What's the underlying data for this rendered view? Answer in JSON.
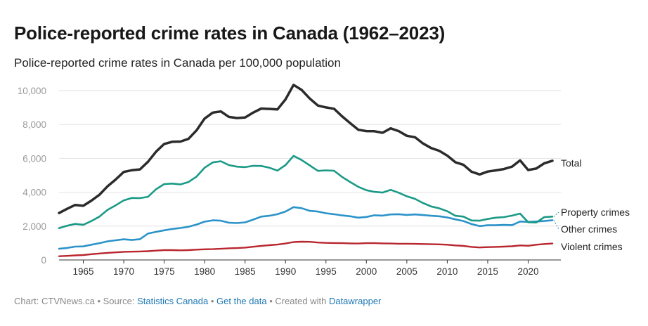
{
  "title": "Police-reported crime rates in Canada (1962–2023)",
  "subtitle": "Police-reported crime rates in Canada per 100,000 population",
  "footer": {
    "chart_prefix": "Chart: CTVNews.ca • Source: ",
    "source_link": "Statistics Canada",
    "sep": " • ",
    "data_link": "Get the data",
    "created_prefix": " • Created with ",
    "tool_link": "Datawrapper"
  },
  "chart_data": {
    "type": "line",
    "title": "Police-reported crime rates in Canada (1962–2023)",
    "ylabel": "per 100,000 population",
    "xlim": [
      1962,
      2023
    ],
    "ylim": [
      0,
      10000
    ],
    "yticks": [
      0,
      2000,
      4000,
      6000,
      8000,
      10000
    ],
    "ytick_labels": [
      "0",
      "2,000",
      "4,000",
      "6,000",
      "8,000",
      "10,000"
    ],
    "xticks": [
      1965,
      1970,
      1975,
      1980,
      1985,
      1990,
      1995,
      2000,
      2005,
      2010,
      2015,
      2020
    ],
    "x": [
      1962,
      1963,
      1964,
      1965,
      1966,
      1967,
      1968,
      1969,
      1970,
      1971,
      1972,
      1973,
      1974,
      1975,
      1976,
      1977,
      1978,
      1979,
      1980,
      1981,
      1982,
      1983,
      1984,
      1985,
      1986,
      1987,
      1988,
      1989,
      1990,
      1991,
      1992,
      1993,
      1994,
      1995,
      1996,
      1997,
      1998,
      1999,
      2000,
      2001,
      2002,
      2003,
      2004,
      2005,
      2006,
      2007,
      2008,
      2009,
      2010,
      2011,
      2012,
      2013,
      2014,
      2015,
      2016,
      2017,
      2018,
      2019,
      2020,
      2021,
      2022,
      2023
    ],
    "series": [
      {
        "name": "Total",
        "color": "#2b2b2b",
        "values": [
          2770,
          3020,
          3250,
          3200,
          3500,
          3850,
          4350,
          4750,
          5200,
          5300,
          5350,
          5800,
          6400,
          6850,
          6980,
          6990,
          7150,
          7650,
          8350,
          8700,
          8770,
          8450,
          8380,
          8410,
          8700,
          8940,
          8920,
          8890,
          9480,
          10340,
          10040,
          9530,
          9120,
          9010,
          8930,
          8480,
          8080,
          7690,
          7610,
          7600,
          7510,
          7770,
          7610,
          7330,
          7250,
          6880,
          6610,
          6450,
          6160,
          5770,
          5620,
          5210,
          5050,
          5220,
          5290,
          5370,
          5510,
          5880,
          5310,
          5400,
          5710,
          5860
        ]
      },
      {
        "name": "Property crimes",
        "color": "#1a9a86",
        "values": [
          1880,
          2020,
          2130,
          2080,
          2300,
          2560,
          2960,
          3230,
          3520,
          3660,
          3650,
          3730,
          4180,
          4480,
          4510,
          4460,
          4600,
          4920,
          5450,
          5760,
          5830,
          5600,
          5510,
          5480,
          5560,
          5550,
          5450,
          5280,
          5600,
          6150,
          5900,
          5580,
          5260,
          5290,
          5270,
          4900,
          4600,
          4320,
          4120,
          4020,
          3980,
          4140,
          3970,
          3760,
          3610,
          3360,
          3160,
          3050,
          2880,
          2610,
          2560,
          2330,
          2320,
          2420,
          2500,
          2530,
          2620,
          2740,
          2230,
          2210,
          2530,
          2560
        ]
      },
      {
        "name": "Other crimes",
        "color": "#2b93c9",
        "values": [
          660,
          710,
          790,
          800,
          900,
          990,
          1100,
          1160,
          1220,
          1180,
          1230,
          1560,
          1660,
          1750,
          1830,
          1890,
          1960,
          2090,
          2260,
          2340,
          2320,
          2200,
          2180,
          2220,
          2380,
          2560,
          2610,
          2700,
          2860,
          3120,
          3060,
          2900,
          2860,
          2760,
          2700,
          2630,
          2580,
          2500,
          2540,
          2640,
          2620,
          2690,
          2700,
          2660,
          2690,
          2650,
          2610,
          2580,
          2510,
          2400,
          2300,
          2120,
          2000,
          2050,
          2050,
          2070,
          2060,
          2270,
          2250,
          2270,
          2300,
          2350
        ]
      },
      {
        "name": "Violent crimes",
        "color": "#b8262e",
        "values": [
          220,
          240,
          270,
          290,
          340,
          380,
          420,
          450,
          480,
          490,
          500,
          520,
          550,
          580,
          580,
          570,
          580,
          610,
          630,
          640,
          660,
          690,
          700,
          730,
          780,
          830,
          870,
          910,
          970,
          1060,
          1080,
          1070,
          1030,
          1010,
          1000,
          990,
          980,
          970,
          990,
          990,
          980,
          970,
          960,
          960,
          950,
          940,
          930,
          920,
          900,
          860,
          830,
          770,
          740,
          760,
          770,
          790,
          810,
          860,
          840,
          900,
          940,
          970
        ]
      }
    ]
  }
}
